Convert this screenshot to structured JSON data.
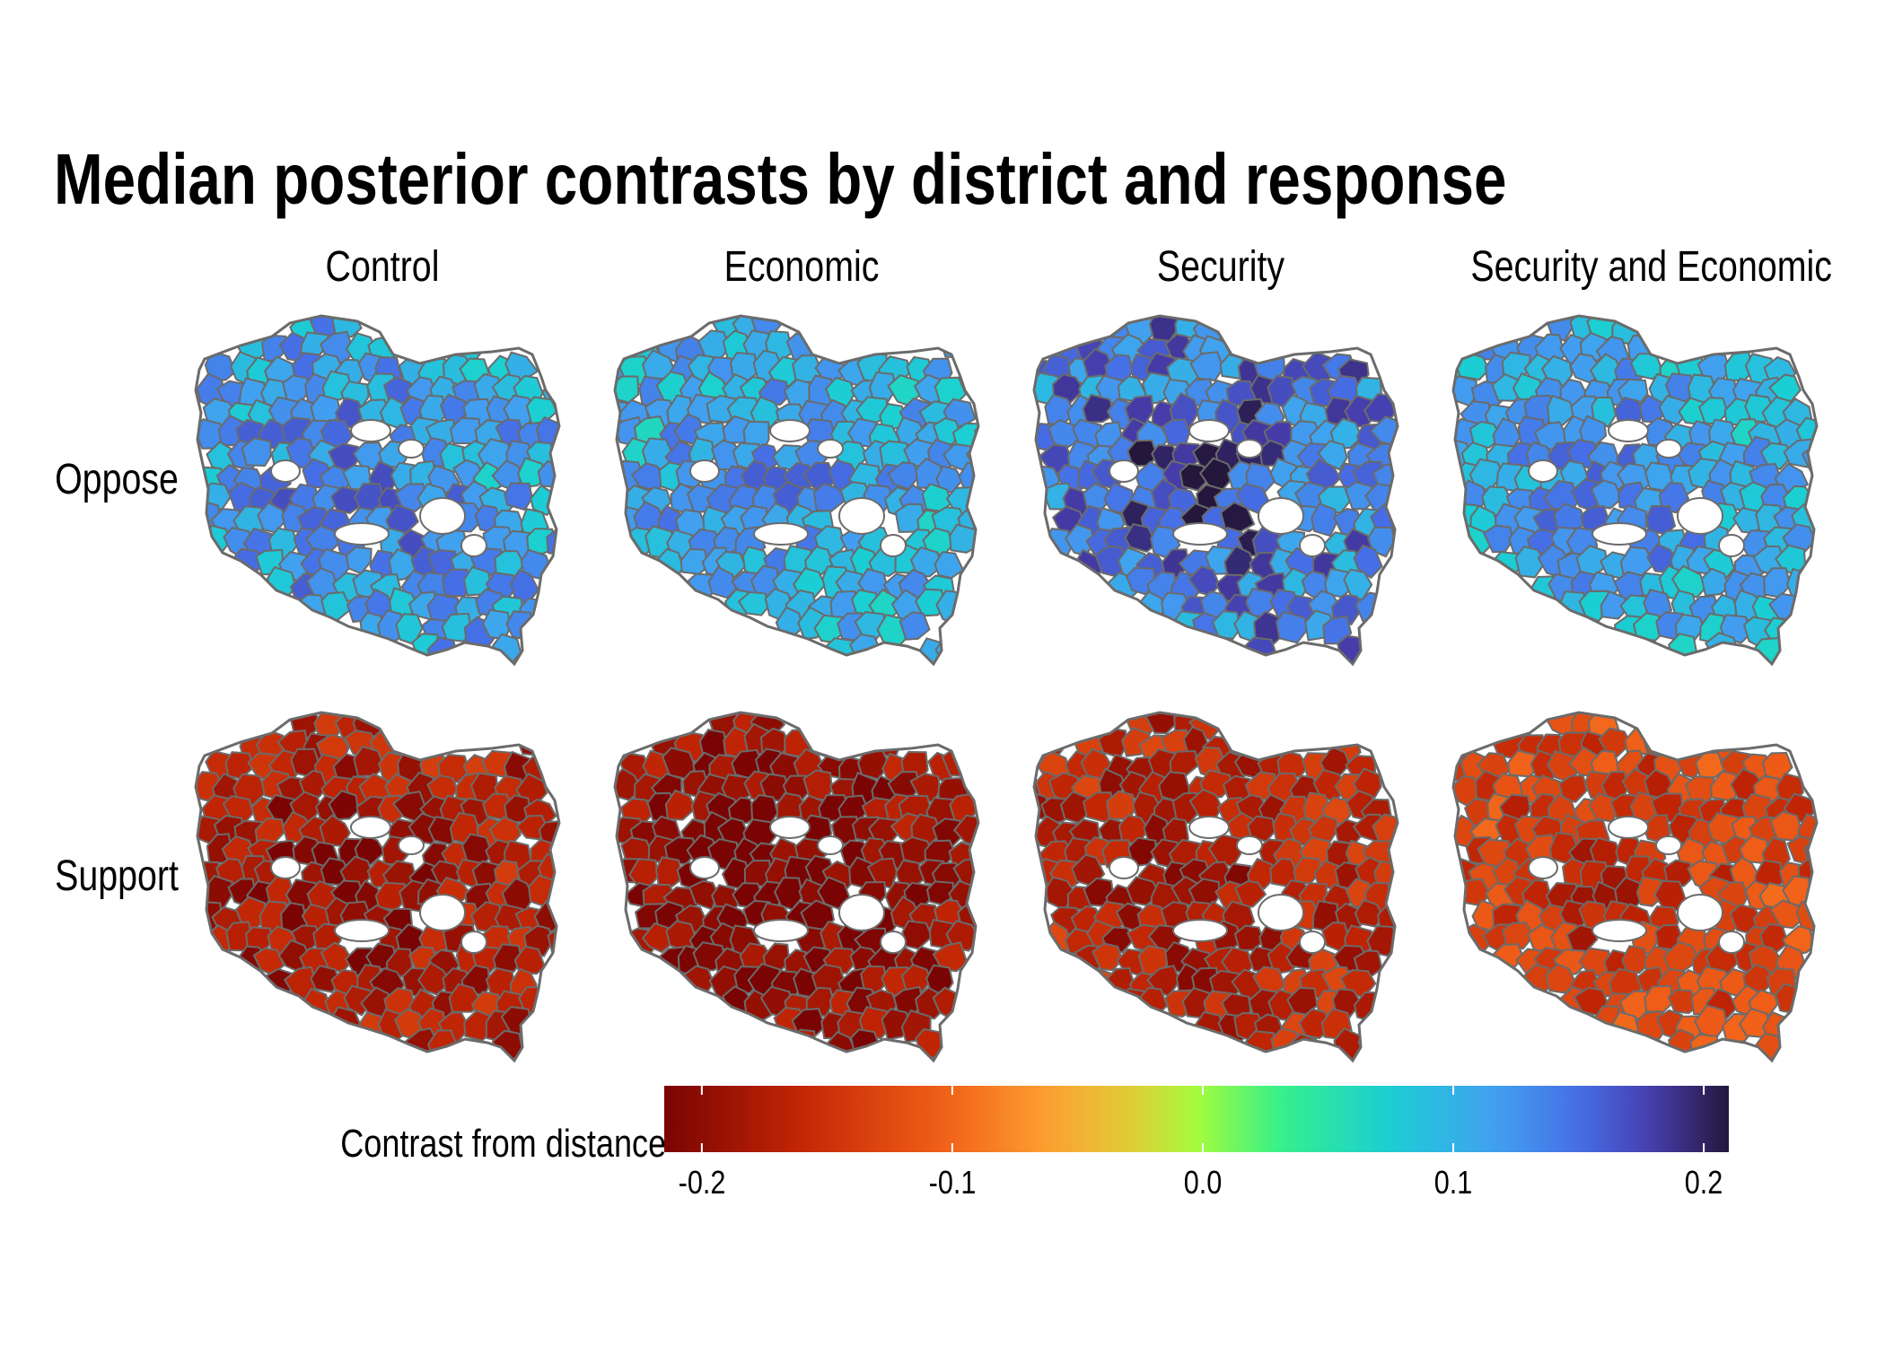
{
  "chart_data": {
    "type": "heatmap",
    "title": "Median posterior contrasts by district and response",
    "columns": [
      "Control",
      "Economic",
      "Security",
      "Security and Economic"
    ],
    "rows": [
      "Oppose",
      "Support"
    ],
    "panels": [
      {
        "row": "Oppose",
        "column": "Control",
        "median_value": 0.11,
        "range": [
          0.05,
          0.17
        ]
      },
      {
        "row": "Oppose",
        "column": "Economic",
        "median_value": 0.1,
        "range": [
          0.05,
          0.16
        ]
      },
      {
        "row": "Oppose",
        "column": "Security",
        "median_value": 0.14,
        "range": [
          0.07,
          0.21
        ]
      },
      {
        "row": "Oppose",
        "column": "Security and Economic",
        "median_value": 0.1,
        "range": [
          0.05,
          0.16
        ]
      },
      {
        "row": "Support",
        "column": "Control",
        "median_value": -0.17,
        "range": [
          -0.22,
          -0.12
        ]
      },
      {
        "row": "Support",
        "column": "Economic",
        "median_value": -0.19,
        "range": [
          -0.23,
          -0.14
        ]
      },
      {
        "row": "Support",
        "column": "Security",
        "median_value": -0.16,
        "range": [
          -0.21,
          -0.11
        ]
      },
      {
        "row": "Support",
        "column": "Security and Economic",
        "median_value": -0.13,
        "range": [
          -0.19,
          -0.09
        ]
      }
    ],
    "legend": {
      "title": "Contrast from distance",
      "colormap": "turbo (reversed)",
      "range": [
        -0.215,
        0.21
      ],
      "ticks": [
        -0.2,
        -0.1,
        0.0,
        0.1,
        0.2
      ],
      "tick_labels": [
        "-0.2",
        "-0.1",
        "0.0",
        "0.1",
        "0.2"
      ],
      "placement": "bottom"
    },
    "district_border_color": "#6b6b6b"
  }
}
